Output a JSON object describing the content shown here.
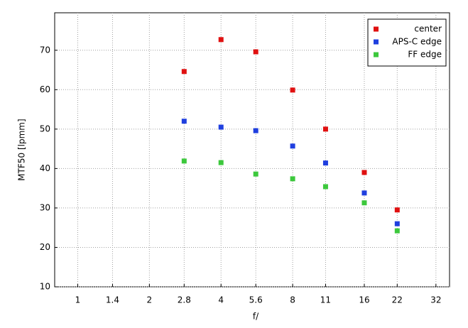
{
  "chart_data": {
    "type": "scatter",
    "x_label": "f/",
    "y_label": "MTF50 [lpmm]",
    "x_log": true,
    "xlim": [
      0.8,
      36.5
    ],
    "xticks": [
      1,
      1.4,
      2,
      2.8,
      4,
      5.6,
      8,
      11,
      16,
      22,
      32
    ],
    "ylim": [
      10,
      79.5
    ],
    "yticks": [
      10,
      20,
      30,
      40,
      50,
      60,
      70
    ],
    "grid": true,
    "legend": "upper right",
    "x": [
      2.8,
      4,
      5.6,
      8,
      11,
      16,
      22
    ],
    "series": [
      {
        "name": "center",
        "color": "#e01010",
        "values": [
          64.6,
          72.7,
          69.6,
          59.9,
          50.0,
          39.0,
          29.5
        ]
      },
      {
        "name": "APS-C edge",
        "color": "#1f3fdf",
        "values": [
          52.0,
          50.5,
          49.6,
          45.7,
          41.4,
          33.8,
          26.0
        ]
      },
      {
        "name": "FF edge",
        "color": "#3cc83c",
        "values": [
          41.9,
          41.5,
          38.6,
          37.4,
          35.4,
          31.3,
          24.2
        ]
      }
    ]
  }
}
